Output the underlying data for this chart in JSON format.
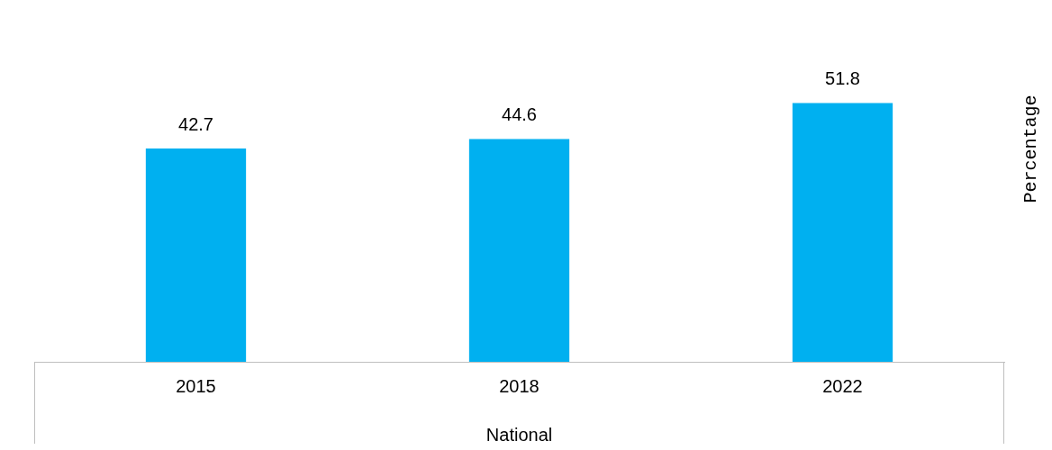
{
  "chart_data": {
    "type": "bar",
    "xlabel": "National",
    "ylabel": "Percentage",
    "categories": [
      "2015",
      "2018",
      "2022"
    ],
    "values": [
      42.7,
      44.6,
      51.8
    ],
    "color": "#00b0f0",
    "data_labels": true,
    "grid": false,
    "legend": false
  }
}
